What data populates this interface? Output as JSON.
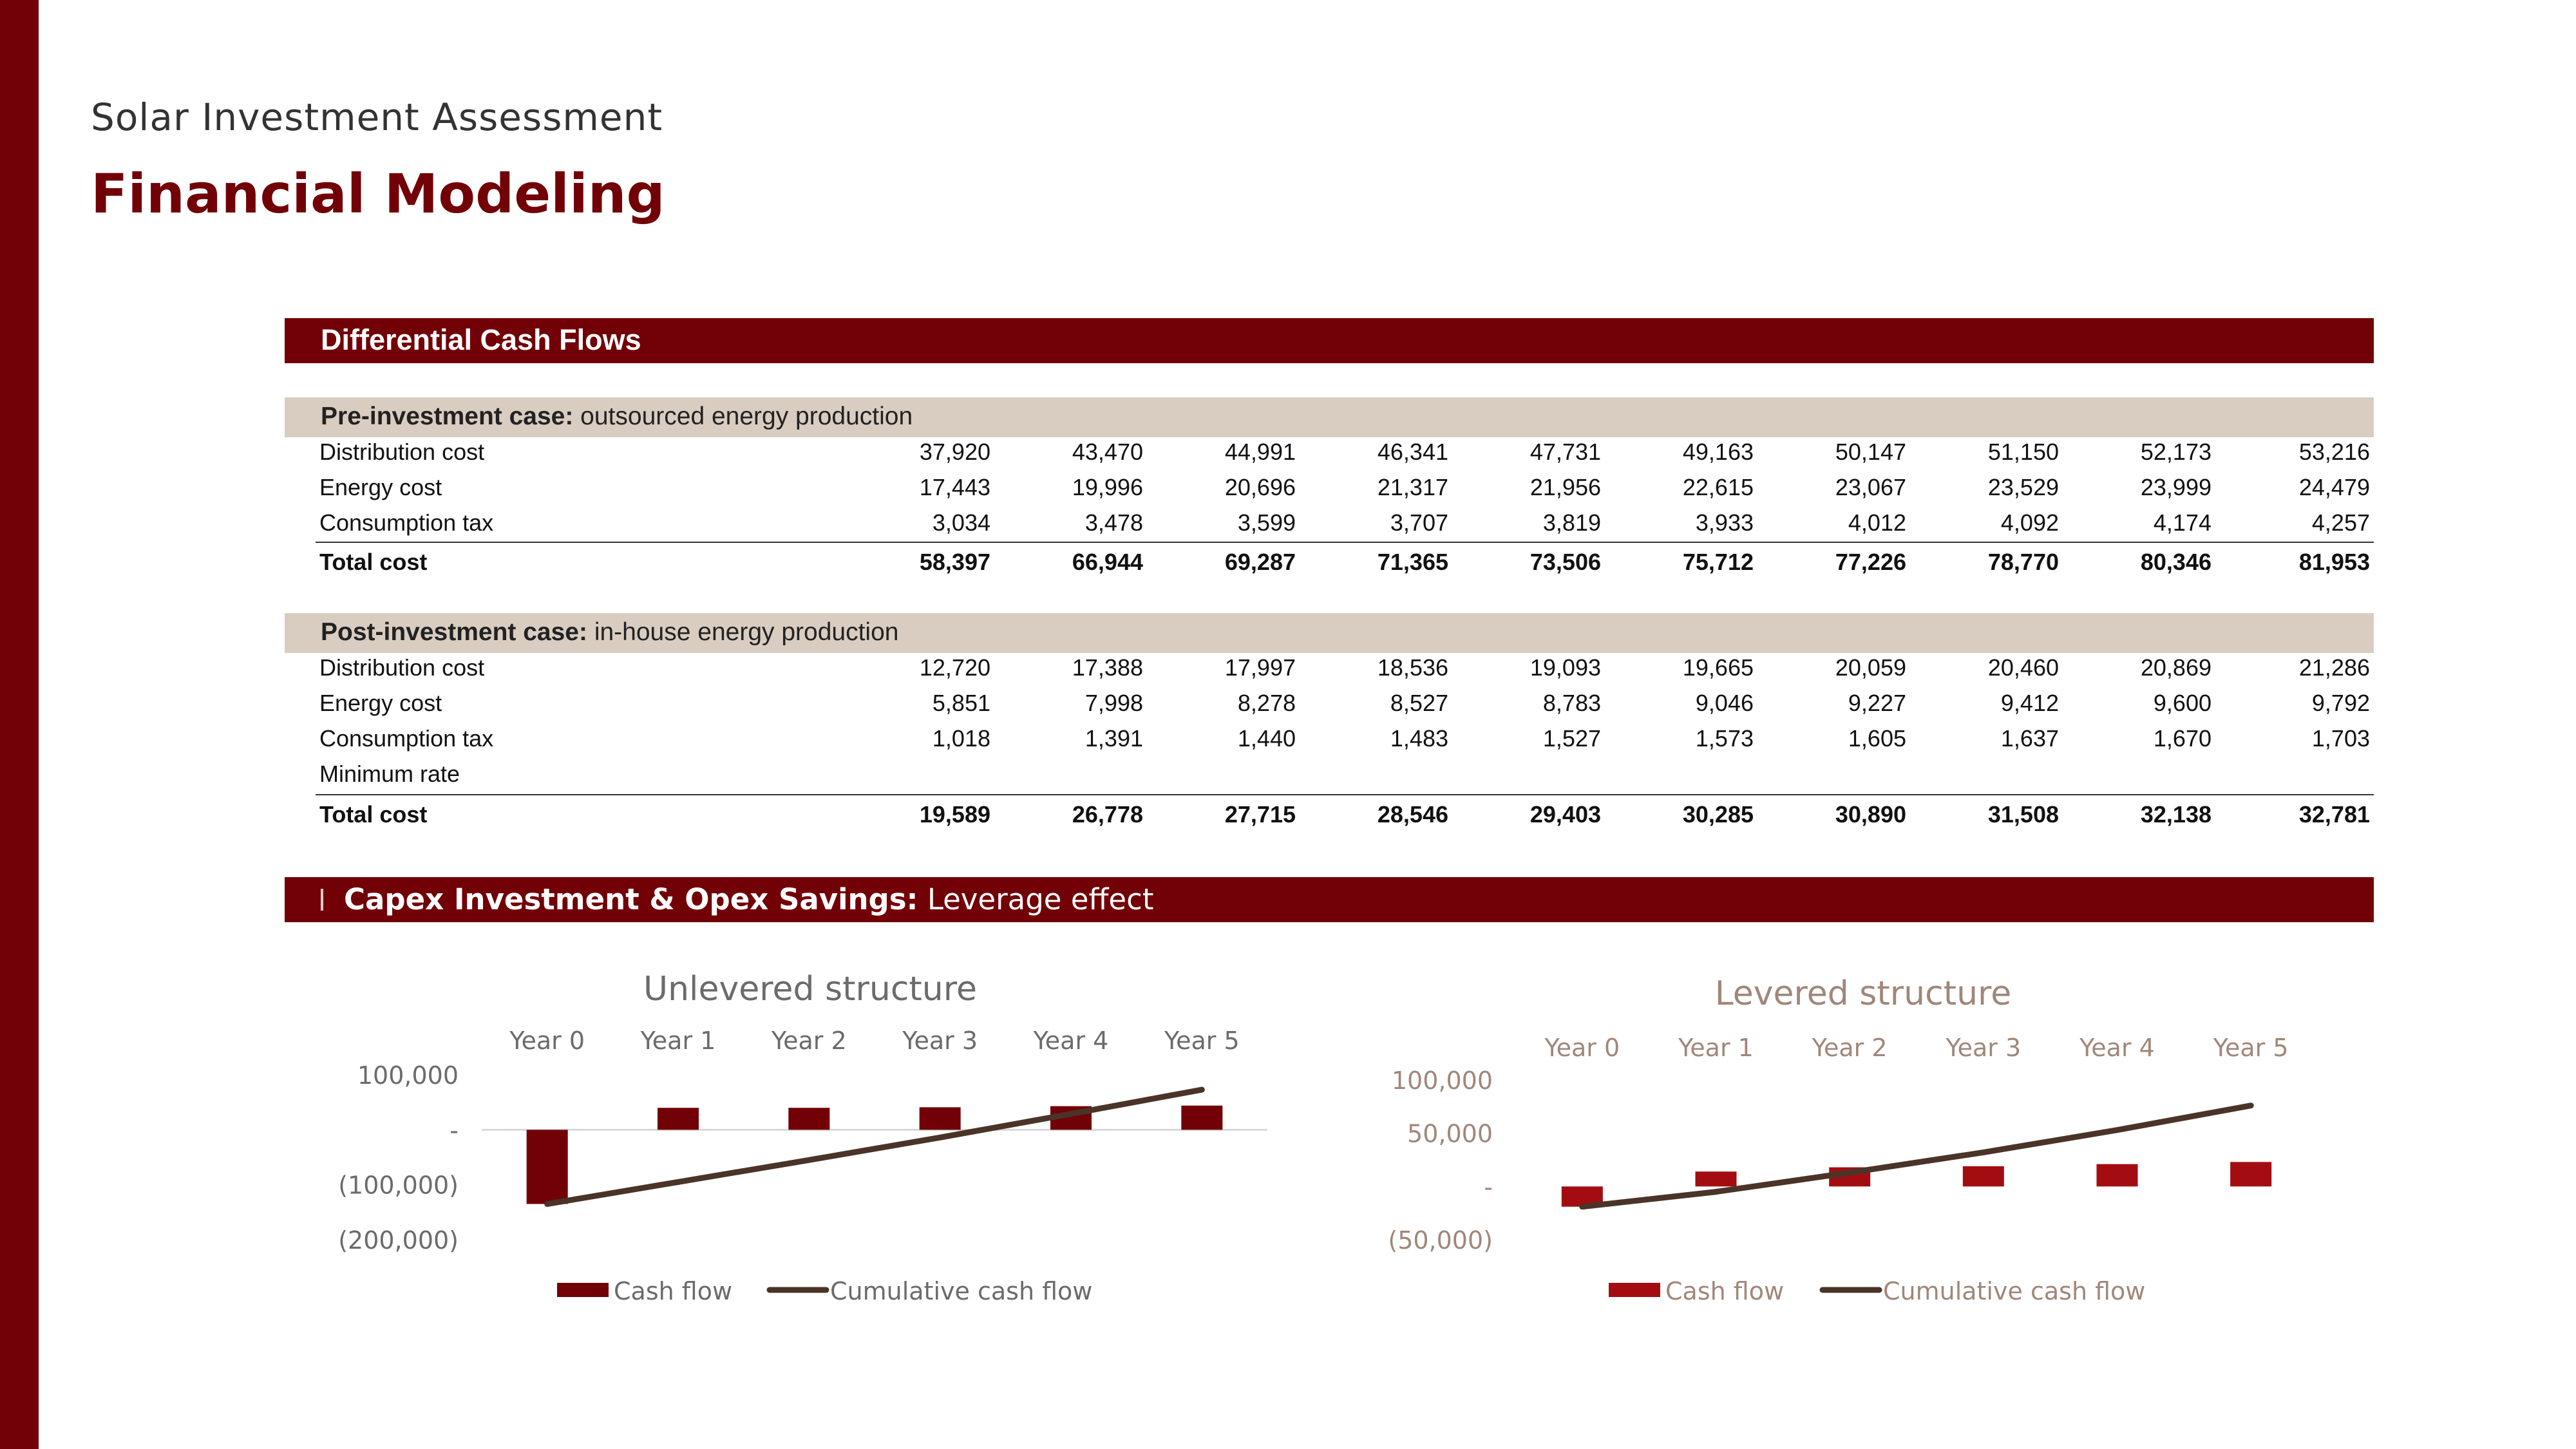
{
  "header": {
    "subtitle": "Solar Investment Assessment",
    "title": "Financial Modeling"
  },
  "cash_flows": {
    "banner": "Differential Cash Flows",
    "pre": {
      "heading_bold": "Pre-investment case:",
      "heading_rest": " outsourced energy production",
      "rows": [
        {
          "label": "Distribution cost",
          "values": [
            "37,920",
            "43,470",
            "44,991",
            "46,341",
            "47,731",
            "49,163",
            "50,147",
            "51,150",
            "52,173",
            "53,216"
          ]
        },
        {
          "label": "Energy cost",
          "values": [
            "17,443",
            "19,996",
            "20,696",
            "21,317",
            "21,956",
            "22,615",
            "23,067",
            "23,529",
            "23,999",
            "24,479"
          ]
        },
        {
          "label": "Consumption tax",
          "values": [
            "3,034",
            "3,478",
            "3,599",
            "3,707",
            "3,819",
            "3,933",
            "4,012",
            "4,092",
            "4,174",
            "4,257"
          ]
        }
      ],
      "total": {
        "label": "Total cost",
        "values": [
          "58,397",
          "66,944",
          "69,287",
          "71,365",
          "73,506",
          "75,712",
          "77,226",
          "78,770",
          "80,346",
          "81,953"
        ]
      }
    },
    "post": {
      "heading_bold": "Post-investment case:",
      "heading_rest": " in-house energy production",
      "rows": [
        {
          "label": "Distribution cost",
          "values": [
            "12,720",
            "17,388",
            "17,997",
            "18,536",
            "19,093",
            "19,665",
            "20,059",
            "20,460",
            "20,869",
            "21,286"
          ]
        },
        {
          "label": "Energy cost",
          "values": [
            "5,851",
            "7,998",
            "8,278",
            "8,527",
            "8,783",
            "9,046",
            "9,227",
            "9,412",
            "9,600",
            "9,792"
          ]
        },
        {
          "label": "Consumption tax",
          "values": [
            "1,018",
            "1,391",
            "1,440",
            "1,483",
            "1,527",
            "1,573",
            "1,605",
            "1,637",
            "1,670",
            "1,703"
          ]
        },
        {
          "label": "Minimum rate",
          "values": [
            "",
            "",
            "",
            "",
            "",
            "",
            "",
            "",
            "",
            ""
          ]
        }
      ],
      "total": {
        "label": "Total cost",
        "values": [
          "19,589",
          "26,778",
          "27,715",
          "28,546",
          "29,403",
          "30,285",
          "30,890",
          "31,508",
          "32,138",
          "32,781"
        ]
      }
    }
  },
  "leverage": {
    "banner_bold": "Capex Investment & Opex Savings:",
    "banner_rest": " Leverage effect"
  },
  "colors": {
    "accent": "#720007",
    "bar": "#720007",
    "bar_levered": "#a30d12",
    "line": "#4a3428",
    "section_bg": "#d9cdc2"
  },
  "chart_data": [
    {
      "type": "bar",
      "title": "Unlevered structure",
      "categories": [
        "Year 0",
        "Year 1",
        "Year 2",
        "Year 3",
        "Year 4",
        "Year 5"
      ],
      "ylim": [
        -200000,
        100000
      ],
      "yticks": [
        100000,
        0,
        -100000,
        -200000
      ],
      "ytick_labels": [
        "100,000",
        "-",
        "(100,000)",
        "(200,000)"
      ],
      "series": [
        {
          "name": "Cash flow",
          "kind": "bar",
          "values": [
            -135000,
            40000,
            40000,
            41000,
            43000,
            44000
          ]
        },
        {
          "name": "Cumulative cash flow",
          "kind": "line",
          "values": [
            -135000,
            -95000,
            -55000,
            -14000,
            29000,
            73000
          ]
        }
      ],
      "legend": "bottom"
    },
    {
      "type": "bar",
      "title": "Levered structure",
      "categories": [
        "Year 0",
        "Year 1",
        "Year 2",
        "Year 3",
        "Year 4",
        "Year 5"
      ],
      "ylim": [
        -50000,
        100000
      ],
      "yticks": [
        100000,
        50000,
        0,
        -50000
      ],
      "ytick_labels": [
        "100,000",
        "50,000",
        "-",
        "(50,000)"
      ],
      "series": [
        {
          "name": "Cash flow",
          "kind": "bar",
          "values": [
            -19000,
            14000,
            18000,
            19000,
            21000,
            23000
          ]
        },
        {
          "name": "Cumulative cash flow",
          "kind": "line",
          "values": [
            -19000,
            -5000,
            13000,
            32000,
            53000,
            76000
          ]
        }
      ],
      "legend": "bottom"
    }
  ]
}
